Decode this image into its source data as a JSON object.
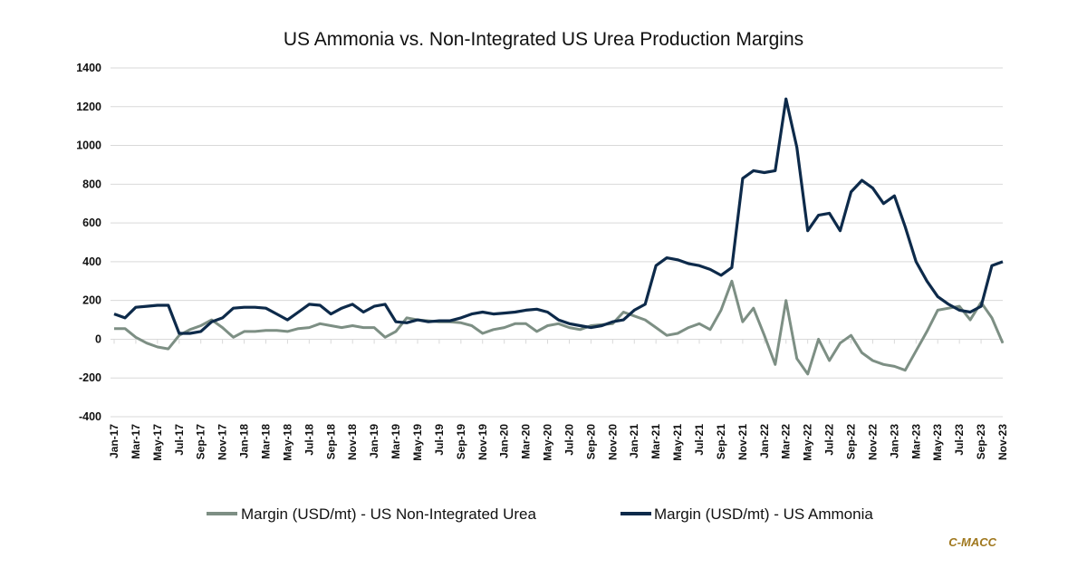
{
  "chart_data": {
    "type": "line",
    "title": "US Ammonia vs. Non-Integrated US Urea Production Margins",
    "xlabel": "",
    "ylabel": "",
    "ylim": [
      -400,
      1400
    ],
    "yticks": [
      1400,
      1200,
      1000,
      800,
      600,
      400,
      200,
      0,
      -200,
      -400
    ],
    "grid": true,
    "legend_position": "bottom",
    "x_tick_labels": [
      "Jan-17",
      "Mar-17",
      "May-17",
      "Jul-17",
      "Sep-17",
      "Nov-17",
      "Jan-18",
      "Mar-18",
      "May-18",
      "Jul-18",
      "Sep-18",
      "Nov-18",
      "Jan-19",
      "Mar-19",
      "May-19",
      "Jul-19",
      "Sep-19",
      "Nov-19",
      "Jan-20",
      "Mar-20",
      "May-20",
      "Jul-20",
      "Sep-20",
      "Nov-20",
      "Jan-21",
      "Mar-21",
      "May-21",
      "Jul-21",
      "Sep-21",
      "Nov-21",
      "Jan-22",
      "Mar-22",
      "May-22",
      "Jul-22",
      "Sep-22",
      "Nov-22",
      "Jan-23",
      "Mar-23",
      "May-23",
      "Jul-23",
      "Sep-23",
      "Nov-23"
    ],
    "x": [
      "Jan-17",
      "Feb-17",
      "Mar-17",
      "Apr-17",
      "May-17",
      "Jun-17",
      "Jul-17",
      "Aug-17",
      "Sep-17",
      "Oct-17",
      "Nov-17",
      "Dec-17",
      "Jan-18",
      "Feb-18",
      "Mar-18",
      "Apr-18",
      "May-18",
      "Jun-18",
      "Jul-18",
      "Aug-18",
      "Sep-18",
      "Oct-18",
      "Nov-18",
      "Dec-18",
      "Jan-19",
      "Feb-19",
      "Mar-19",
      "Apr-19",
      "May-19",
      "Jun-19",
      "Jul-19",
      "Aug-19",
      "Sep-19",
      "Oct-19",
      "Nov-19",
      "Dec-19",
      "Jan-20",
      "Feb-20",
      "Mar-20",
      "Apr-20",
      "May-20",
      "Jun-20",
      "Jul-20",
      "Aug-20",
      "Sep-20",
      "Oct-20",
      "Nov-20",
      "Dec-20",
      "Jan-21",
      "Feb-21",
      "Mar-21",
      "Apr-21",
      "May-21",
      "Jun-21",
      "Jul-21",
      "Aug-21",
      "Sep-21",
      "Oct-21",
      "Nov-21",
      "Dec-21",
      "Jan-22",
      "Feb-22",
      "Mar-22",
      "Apr-22",
      "May-22",
      "Jun-22",
      "Jul-22",
      "Aug-22",
      "Sep-22",
      "Oct-22",
      "Nov-22",
      "Dec-22",
      "Jan-23",
      "Feb-23",
      "Mar-23",
      "Apr-23",
      "May-23",
      "Jun-23",
      "Jul-23",
      "Aug-23",
      "Sep-23",
      "Oct-23",
      "Nov-23"
    ],
    "series": [
      {
        "name": "Margin (USD/mt) - US Non-Integrated Urea",
        "color": "#7d8f84",
        "values": [
          55,
          55,
          10,
          -20,
          -40,
          -50,
          20,
          50,
          70,
          100,
          60,
          10,
          40,
          40,
          45,
          45,
          40,
          55,
          60,
          80,
          70,
          60,
          70,
          60,
          60,
          10,
          40,
          110,
          100,
          95,
          90,
          90,
          85,
          70,
          30,
          50,
          60,
          80,
          80,
          40,
          70,
          80,
          60,
          50,
          70,
          75,
          80,
          140,
          120,
          100,
          60,
          20,
          30,
          60,
          80,
          50,
          150,
          300,
          90,
          160,
          20,
          -130,
          200,
          -100,
          -180,
          0,
          -110,
          -20,
          20,
          -70,
          -110,
          -130,
          -140,
          -160,
          -60,
          40,
          150,
          160,
          170,
          100,
          190,
          110,
          -20
        ]
      },
      {
        "name": "Margin (USD/mt) - US Ammonia",
        "color": "#0d2a4a",
        "values": [
          130,
          110,
          165,
          170,
          175,
          175,
          30,
          30,
          40,
          90,
          110,
          160,
          165,
          165,
          160,
          130,
          100,
          140,
          180,
          175,
          130,
          160,
          180,
          140,
          170,
          180,
          90,
          85,
          100,
          90,
          95,
          95,
          110,
          130,
          140,
          130,
          135,
          140,
          150,
          155,
          140,
          100,
          80,
          70,
          60,
          70,
          90,
          100,
          150,
          180,
          380,
          420,
          410,
          390,
          380,
          360,
          330,
          370,
          830,
          870,
          860,
          870,
          1240,
          990,
          560,
          640,
          650,
          560,
          760,
          820,
          780,
          700,
          740,
          580,
          400,
          300,
          220,
          180,
          150,
          140,
          170,
          380,
          400
        ]
      }
    ]
  },
  "legend": {
    "items": [
      {
        "label": "Margin (USD/mt) - US Non-Integrated Urea",
        "color": "#7d8f84"
      },
      {
        "label": "Margin (USD/mt) - US Ammonia",
        "color": "#0d2a4a"
      }
    ]
  },
  "source": "C-MACC"
}
